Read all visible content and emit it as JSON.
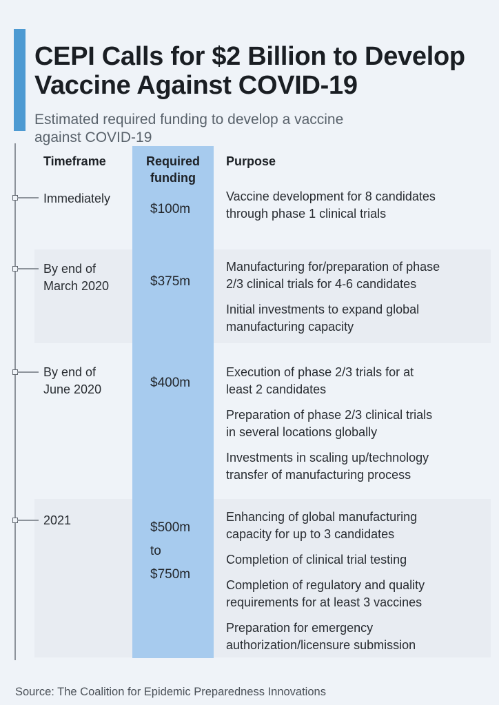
{
  "header": {
    "title": "CEPI Calls for $2 Billion to Develop\nVaccine Against COVID-19",
    "subtitle": "Estimated required funding to develop a vaccine\nagainst COVID-19"
  },
  "colors": {
    "accent_blue": "#4d9ad2",
    "funding_column_blue": "#a7cbee",
    "row_band_gray": "#e8ecf2",
    "background": "#eff3f8"
  },
  "table": {
    "columns": [
      "Timeframe",
      "Required\nfunding",
      "Purpose"
    ],
    "rows": [
      {
        "timeframe": "Immediately",
        "funding": "$100m",
        "purposes": [
          "Vaccine development for 8 candidates\nthrough phase 1 clinical trials"
        ]
      },
      {
        "timeframe": "By end of\nMarch 2020",
        "funding": "$375m",
        "purposes": [
          "Manufacturing for/preparation of phase\n2/3 clinical trials for 4-6 candidates",
          "Initial investments to expand global\nmanufacturing capacity"
        ]
      },
      {
        "timeframe": "By end of\nJune 2020",
        "funding": "$400m",
        "purposes": [
          "Execution of phase 2/3 trials for at\nleast 2 candidates",
          "Preparation of phase 2/3 clinical trials\nin several locations globally",
          "Investments in scaling up/technology\ntransfer of manufacturing process"
        ]
      },
      {
        "timeframe": "2021",
        "funding": "$500m\nto\n$750m",
        "purposes": [
          "Enhancing of global manufacturing\ncapacity for up to 3 candidates",
          "Completion of clinical trial testing",
          "Completion of regulatory and quality\nrequirements for at least 3 vaccines",
          "Preparation for emergency\nauthorization/licensure submission"
        ]
      }
    ]
  },
  "footer": {
    "source": "Source: The Coalition for Epidemic Preparedness Innovations"
  },
  "chart_data": {
    "type": "table",
    "title": "CEPI Calls for $2 Billion to Develop Vaccine Against COVID-19",
    "subtitle": "Estimated required funding to develop a vaccine against COVID-19",
    "columns": [
      "Timeframe",
      "Required funding",
      "Purpose"
    ],
    "rows": [
      {
        "timeframe": "Immediately",
        "required_funding": "$100m",
        "funding_musd": 100,
        "purposes": [
          "Vaccine development for 8 candidates through phase 1 clinical trials"
        ]
      },
      {
        "timeframe": "By end of March 2020",
        "required_funding": "$375m",
        "funding_musd": 375,
        "purposes": [
          "Manufacturing for/preparation of phase 2/3 clinical trials for 4-6 candidates",
          "Initial investments to expand global manufacturing capacity"
        ]
      },
      {
        "timeframe": "By end of June 2020",
        "required_funding": "$400m",
        "funding_musd": 400,
        "purposes": [
          "Execution of phase 2/3 trials for at least 2 candidates",
          "Preparation of phase 2/3 clinical trials in several locations globally",
          "Investments in scaling up/technology transfer of manufacturing process"
        ]
      },
      {
        "timeframe": "2021",
        "required_funding": "$500m to $750m",
        "funding_musd_min": 500,
        "funding_musd_max": 750,
        "purposes": [
          "Enhancing of global manufacturing capacity for up to 3 candidates",
          "Completion of clinical trial testing",
          "Completion of regulatory and quality requirements for at least 3 vaccines",
          "Preparation for emergency authorization/licensure submission"
        ]
      }
    ],
    "total_called_for_usd": "$2 Billion",
    "source": "Source: The Coalition for Epidemic Preparedness Innovations"
  }
}
